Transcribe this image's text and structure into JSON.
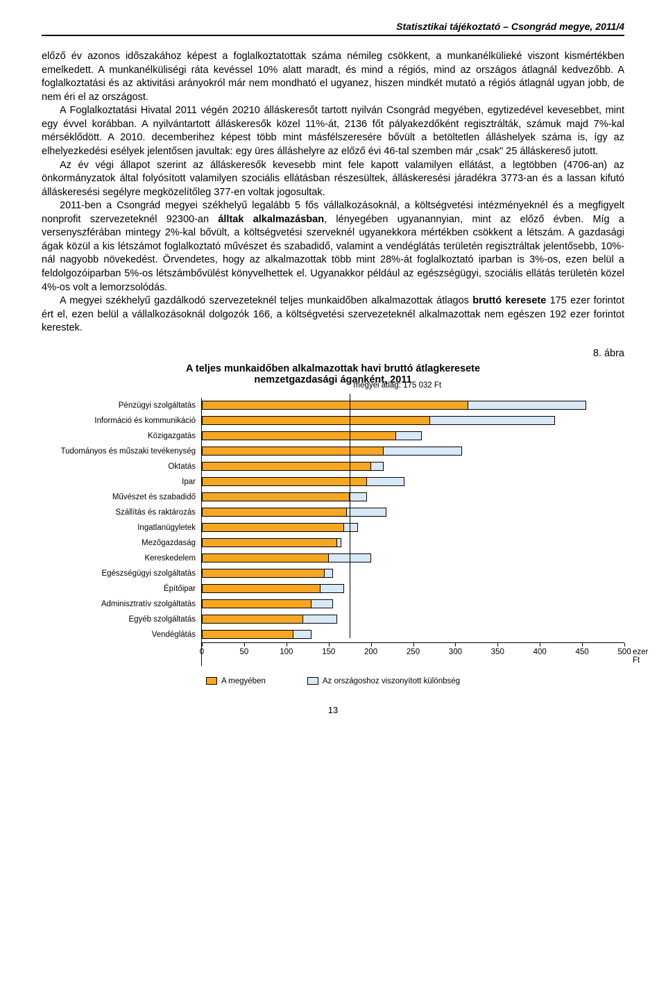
{
  "header": "Statisztikai tájékoztató – Csongrád megye, 2011/4",
  "paragraphs": [
    "előző év azonos időszakához képest a foglalkoztatottak száma némileg csökkent, a munkanélkülieké viszont kismértékben emelkedett. A munkanélküliségi ráta kevéssel 10% alatt maradt, és mind a régiós, mind az országos átlagnál kedvezőbb. A foglalkoztatási és az aktivitási arányokról már nem mondható el ugyanez, hiszen mindkét mutató a régiós átlagnál ugyan jobb, de nem éri el az országost.",
    "A Foglalkoztatási Hivatal 2011 végén 20210 álláskeresőt tartott nyilván Csongrád megyében, egytizedével kevesebbet, mint egy évvel korábban. A nyilvántartott álláskeresők közel 11%-át, 2136 főt pályakezdőként regisztrálták, számuk majd 7%-kal mérséklődött. A 2010. decemberihez képest több mint másfélszeresére bővült a betöltetlen álláshelyek száma is, így az elhelyezkedési esélyek jelentősen javultak: egy üres álláshelyre az előző évi 46-tal szemben már „csak\" 25 álláskereső jutott.",
    "Az év végi állapot szerint az álláskeresők kevesebb mint fele kapott valamilyen ellátást, a legtöbben (4706-an) az önkormányzatok által folyósított valamilyen szociális ellátásban részesültek, álláskeresési járadékra 3773-an és a lassan kifutó álláskeresési segélyre megközelítőleg 377-en voltak jogosultak.",
    "2011-ben a Csongrád megyei székhelyű legalább 5 fős vállalkozásoknál, a költségvetési intézményeknél és a megfigyelt nonprofit szervezeteknél 92300-an <b>álltak alkalmazásban</b>, lényegében ugyanannyian, mint az előző évben. Míg a versenyszférában mintegy 2%-kal bővült, a költségvetési szerveknél ugyanekkora mértékben csökkent a létszám. A gazdasági ágak közül a kis létszámot foglalkoztató művészet és szabadidő, valamint a vendéglátás területén regisztráltak jelentősebb, 10%-nál nagyobb növekedést. Örvendetes, hogy az alkalmazottak több mint 28%-át foglalkoztató iparban is 3%-os, ezen belül a feldolgozóiparban 5%-os létszámbővülést könyvelhettek el. Ugyanakkor például az egészségügyi, szociális ellátás területén közel 4%-os volt a lemorzsolódás.",
    "A megyei székhelyű gazdálkodó szervezeteknél teljes munkaidőben alkalmazottak átlagos <b>bruttó keresete</b> 175 ezer forintot ért el, ezen belül a vállalkozásoknál dolgozók 166, a költségvetési szervezeteknél alkalmazottak nem egészen 192 ezer forintot kerestek."
  ],
  "figure_label": "8. ábra",
  "chart": {
    "title": "A teljes munkaidőben alkalmazottak havi bruttó átlagkeresete<br>nemzetgazdasági áganként, 2011",
    "avg_label": "megyei átlag: 175 032 Ft",
    "avg_value": 175,
    "xmax": 500,
    "xtick_step": 50,
    "x_unit": "ezer Ft",
    "county_color": "#f5a623",
    "diff_color": "#d7e8f7",
    "border_color": "#000000",
    "categories": [
      {
        "label": "Pénzügyi szolgáltatás",
        "county": 315,
        "total": 455
      },
      {
        "label": "Információ és kommunikáció",
        "county": 270,
        "total": 418
      },
      {
        "label": "Közigazgatás",
        "county": 230,
        "total": 260
      },
      {
        "label": "Tudományos és műszaki tevékenység",
        "county": 215,
        "total": 308
      },
      {
        "label": "Oktatás",
        "county": 200,
        "total": 215
      },
      {
        "label": "Ipar",
        "county": 195,
        "total": 240
      },
      {
        "label": "Művészet és szabadidő",
        "county": 175,
        "total": 195
      },
      {
        "label": "Szállítás és raktározás",
        "county": 172,
        "total": 218
      },
      {
        "label": "Ingatlanügyletek",
        "county": 168,
        "total": 185
      },
      {
        "label": "Mezőgazdaság",
        "county": 160,
        "total": 165
      },
      {
        "label": "Kereskedelem",
        "county": 150,
        "total": 200
      },
      {
        "label": "Egészségügyi szolgáltatás",
        "county": 145,
        "total": 155
      },
      {
        "label": "Építőipar",
        "county": 140,
        "total": 168
      },
      {
        "label": "Adminisztratív szolgáltatás",
        "county": 130,
        "total": 155
      },
      {
        "label": "Egyéb szolgáltatás",
        "county": 120,
        "total": 160
      },
      {
        "label": "Vendéglátás",
        "county": 108,
        "total": 130
      }
    ],
    "legend": [
      {
        "label": "A megyében",
        "color": "#f5a623"
      },
      {
        "label": "Az országoshoz viszonyított különbség",
        "color": "#d7e8f7"
      }
    ]
  },
  "page_number": "13"
}
